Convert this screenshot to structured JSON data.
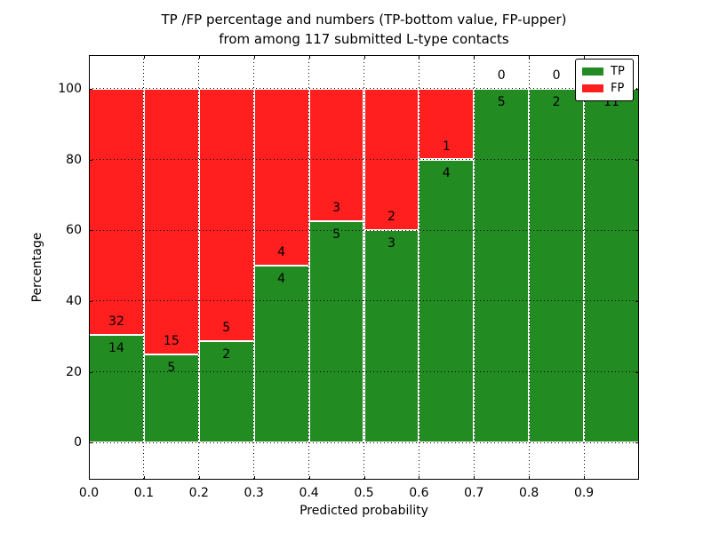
{
  "chart_data": {
    "type": "bar",
    "stacked": true,
    "title_line1": "TP /FP percentage and numbers (TP-bottom value, FP-upper)",
    "title_line2": "from among 117 submitted L-type contacts",
    "xlabel": "Predicted probability",
    "ylabel": "Percentage",
    "x_tick_labels": [
      "0.0",
      "0.1",
      "0.2",
      "0.3",
      "0.4",
      "0.5",
      "0.6",
      "0.7",
      "0.8",
      "0.9"
    ],
    "y_tick_values": [
      0,
      20,
      40,
      60,
      80,
      100
    ],
    "xlim": [
      0.0,
      1.0
    ],
    "ylim": [
      -10.5,
      109.5
    ],
    "bin_width": 0.1,
    "bin_starts": [
      0.0,
      0.1,
      0.2,
      0.3,
      0.4,
      0.5,
      0.6,
      0.7,
      0.8,
      0.9
    ],
    "series": [
      {
        "name": "TP",
        "color": "#228b22",
        "values": [
          14,
          5,
          2,
          4,
          5,
          3,
          4,
          5,
          2,
          11
        ]
      },
      {
        "name": "FP",
        "color": "#ff1f1f",
        "values": [
          32,
          15,
          5,
          4,
          3,
          2,
          1,
          0,
          0,
          0
        ]
      }
    ],
    "tp_percent_per_bin": [
      30.4,
      25.0,
      28.6,
      50.0,
      62.5,
      60.0,
      80.0,
      100.0,
      100.0,
      100.0
    ],
    "legend": {
      "position": "upper right",
      "entries": [
        "TP",
        "FP"
      ]
    },
    "grid": {
      "style": "dotted",
      "color": "#000000"
    }
  }
}
